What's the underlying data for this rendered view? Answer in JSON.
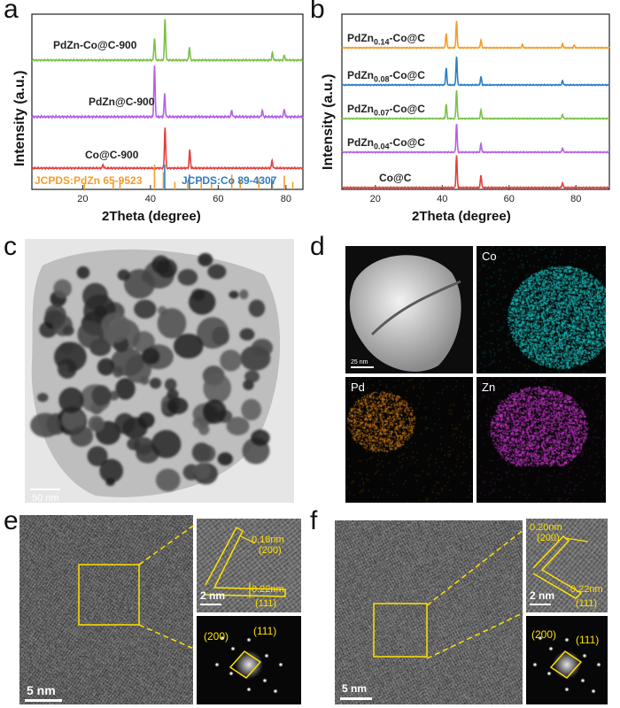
{
  "panels": {
    "a": "a",
    "b": "b",
    "c": "c",
    "d": "d",
    "e": "e",
    "f": "f"
  },
  "chart_data": [
    {
      "type": "line",
      "panel": "a",
      "title": "",
      "xlabel": "2Theta (degree)",
      "ylabel": "Intensity (a.u.)",
      "xlim": [
        5,
        85
      ],
      "xticks": [
        20,
        40,
        60,
        80
      ],
      "series": [
        {
          "name": "PdZn-Co@C-900",
          "color": "#7ec04a",
          "peaks": [
            [
              41.2,
              0.55
            ],
            [
              44.3,
              1.0
            ],
            [
              51.5,
              0.32
            ],
            [
              76.0,
              0.18
            ],
            [
              79.5,
              0.12
            ]
          ]
        },
        {
          "name": "PdZn@C-900",
          "color": "#b560e8",
          "peaks": [
            [
              41.2,
              1.0
            ],
            [
              44.2,
              0.45
            ],
            [
              64.0,
              0.12
            ],
            [
              73.0,
              0.12
            ],
            [
              79.5,
              0.15
            ]
          ]
        },
        {
          "name": "Co@C-900",
          "color": "#e2413f",
          "peaks": [
            [
              26.0,
              0.08
            ],
            [
              44.3,
              1.0
            ],
            [
              51.6,
              0.45
            ],
            [
              75.9,
              0.18
            ]
          ]
        }
      ],
      "references": [
        {
          "name": "JCPDS:PdZn 65-9523",
          "color": "#f59c2a",
          "lines": [
            [
              20.5,
              0.25
            ],
            [
              29.0,
              0.3
            ],
            [
              31.0,
              0.35
            ],
            [
              41.2,
              1.0
            ],
            [
              43.8,
              0.7
            ],
            [
              47.2,
              0.3
            ],
            [
              51.0,
              0.35
            ],
            [
              55.0,
              0.4
            ],
            [
              58.0,
              0.3
            ],
            [
              64.0,
              0.6
            ],
            [
              66.5,
              0.4
            ],
            [
              72.0,
              0.45
            ],
            [
              76.0,
              0.35
            ],
            [
              79.5,
              0.55
            ],
            [
              82.0,
              0.3
            ]
          ]
        },
        {
          "name": "JCPDS:Co 89-4307",
          "color": "#2d7fc1",
          "lines": [
            [
              44.2,
              1.0
            ],
            [
              51.5,
              0.6
            ],
            [
              75.8,
              0.45
            ]
          ]
        }
      ]
    },
    {
      "type": "line",
      "panel": "b",
      "title": "",
      "xlabel": "2Theta (degree)",
      "ylabel": "Intensity (a.u.)",
      "xlim": [
        10,
        90
      ],
      "xticks": [
        20,
        40,
        60,
        80
      ],
      "series": [
        {
          "name": "PdZn0.14-Co@C",
          "label_main": "PdZn",
          "label_sub": "0.14",
          "label_tail": "-Co@C",
          "color": "#f59c2a",
          "peaks": [
            [
              41.2,
              0.55
            ],
            [
              44.3,
              1.0
            ],
            [
              51.6,
              0.3
            ],
            [
              64.0,
              0.12
            ],
            [
              76.0,
              0.15
            ],
            [
              79.5,
              0.1
            ]
          ]
        },
        {
          "name": "PdZn0.08-Co@C",
          "label_main": "PdZn",
          "label_sub": "0.08",
          "label_tail": "-Co@C",
          "color": "#2d7fc1",
          "peaks": [
            [
              41.2,
              0.6
            ],
            [
              44.3,
              1.0
            ],
            [
              51.6,
              0.3
            ],
            [
              76.0,
              0.15
            ]
          ]
        },
        {
          "name": "PdZn0.07-Co@C",
          "label_main": "PdZn",
          "label_sub": "0.07",
          "label_tail": "-Co@C",
          "color": "#7ec04a",
          "peaks": [
            [
              41.2,
              0.5
            ],
            [
              44.3,
              1.0
            ],
            [
              51.6,
              0.3
            ],
            [
              76.0,
              0.15
            ]
          ]
        },
        {
          "name": "PdZn0.04-Co@C",
          "label_main": "PdZn",
          "label_sub": "0.04",
          "label_tail": "-Co@C",
          "color": "#b560e8",
          "peaks": [
            [
              44.3,
              1.0
            ],
            [
              51.6,
              0.3
            ],
            [
              76.0,
              0.15
            ]
          ]
        },
        {
          "name": "Co@C",
          "label_main": "Co@C",
          "label_sub": "",
          "label_tail": "",
          "color": "#e2413f",
          "peaks": [
            [
              44.3,
              1.0
            ],
            [
              51.6,
              0.4
            ],
            [
              76.0,
              0.15
            ]
          ]
        }
      ]
    }
  ],
  "tem": {
    "c_scale": "50 nm",
    "d_scale": "25 nm",
    "d_maps": {
      "co": "Co",
      "pd": "Pd",
      "zn": "Zn"
    },
    "e_scale_main": "5 nm",
    "e_scale_inset": "2 nm",
    "e_d1": "0.18nm",
    "e_p1": "(200)",
    "e_d2": "0.22nm",
    "e_p2": "(111)",
    "e_fft1": "(200)",
    "e_fft2": "(111)",
    "f_scale_main": "5 nm",
    "f_scale_inset": "2 nm",
    "f_d1": "0.20nm",
    "f_p1": "(200)",
    "f_d2": "0.22nm",
    "f_p2": "(111)",
    "f_fft1": "(200)",
    "f_fft2": "(111)"
  },
  "colors": {
    "cyan_map": "#1fc9c9",
    "orange_map": "#e0861a",
    "magenta_map": "#d43ad8",
    "annotation": "#ffe100"
  }
}
